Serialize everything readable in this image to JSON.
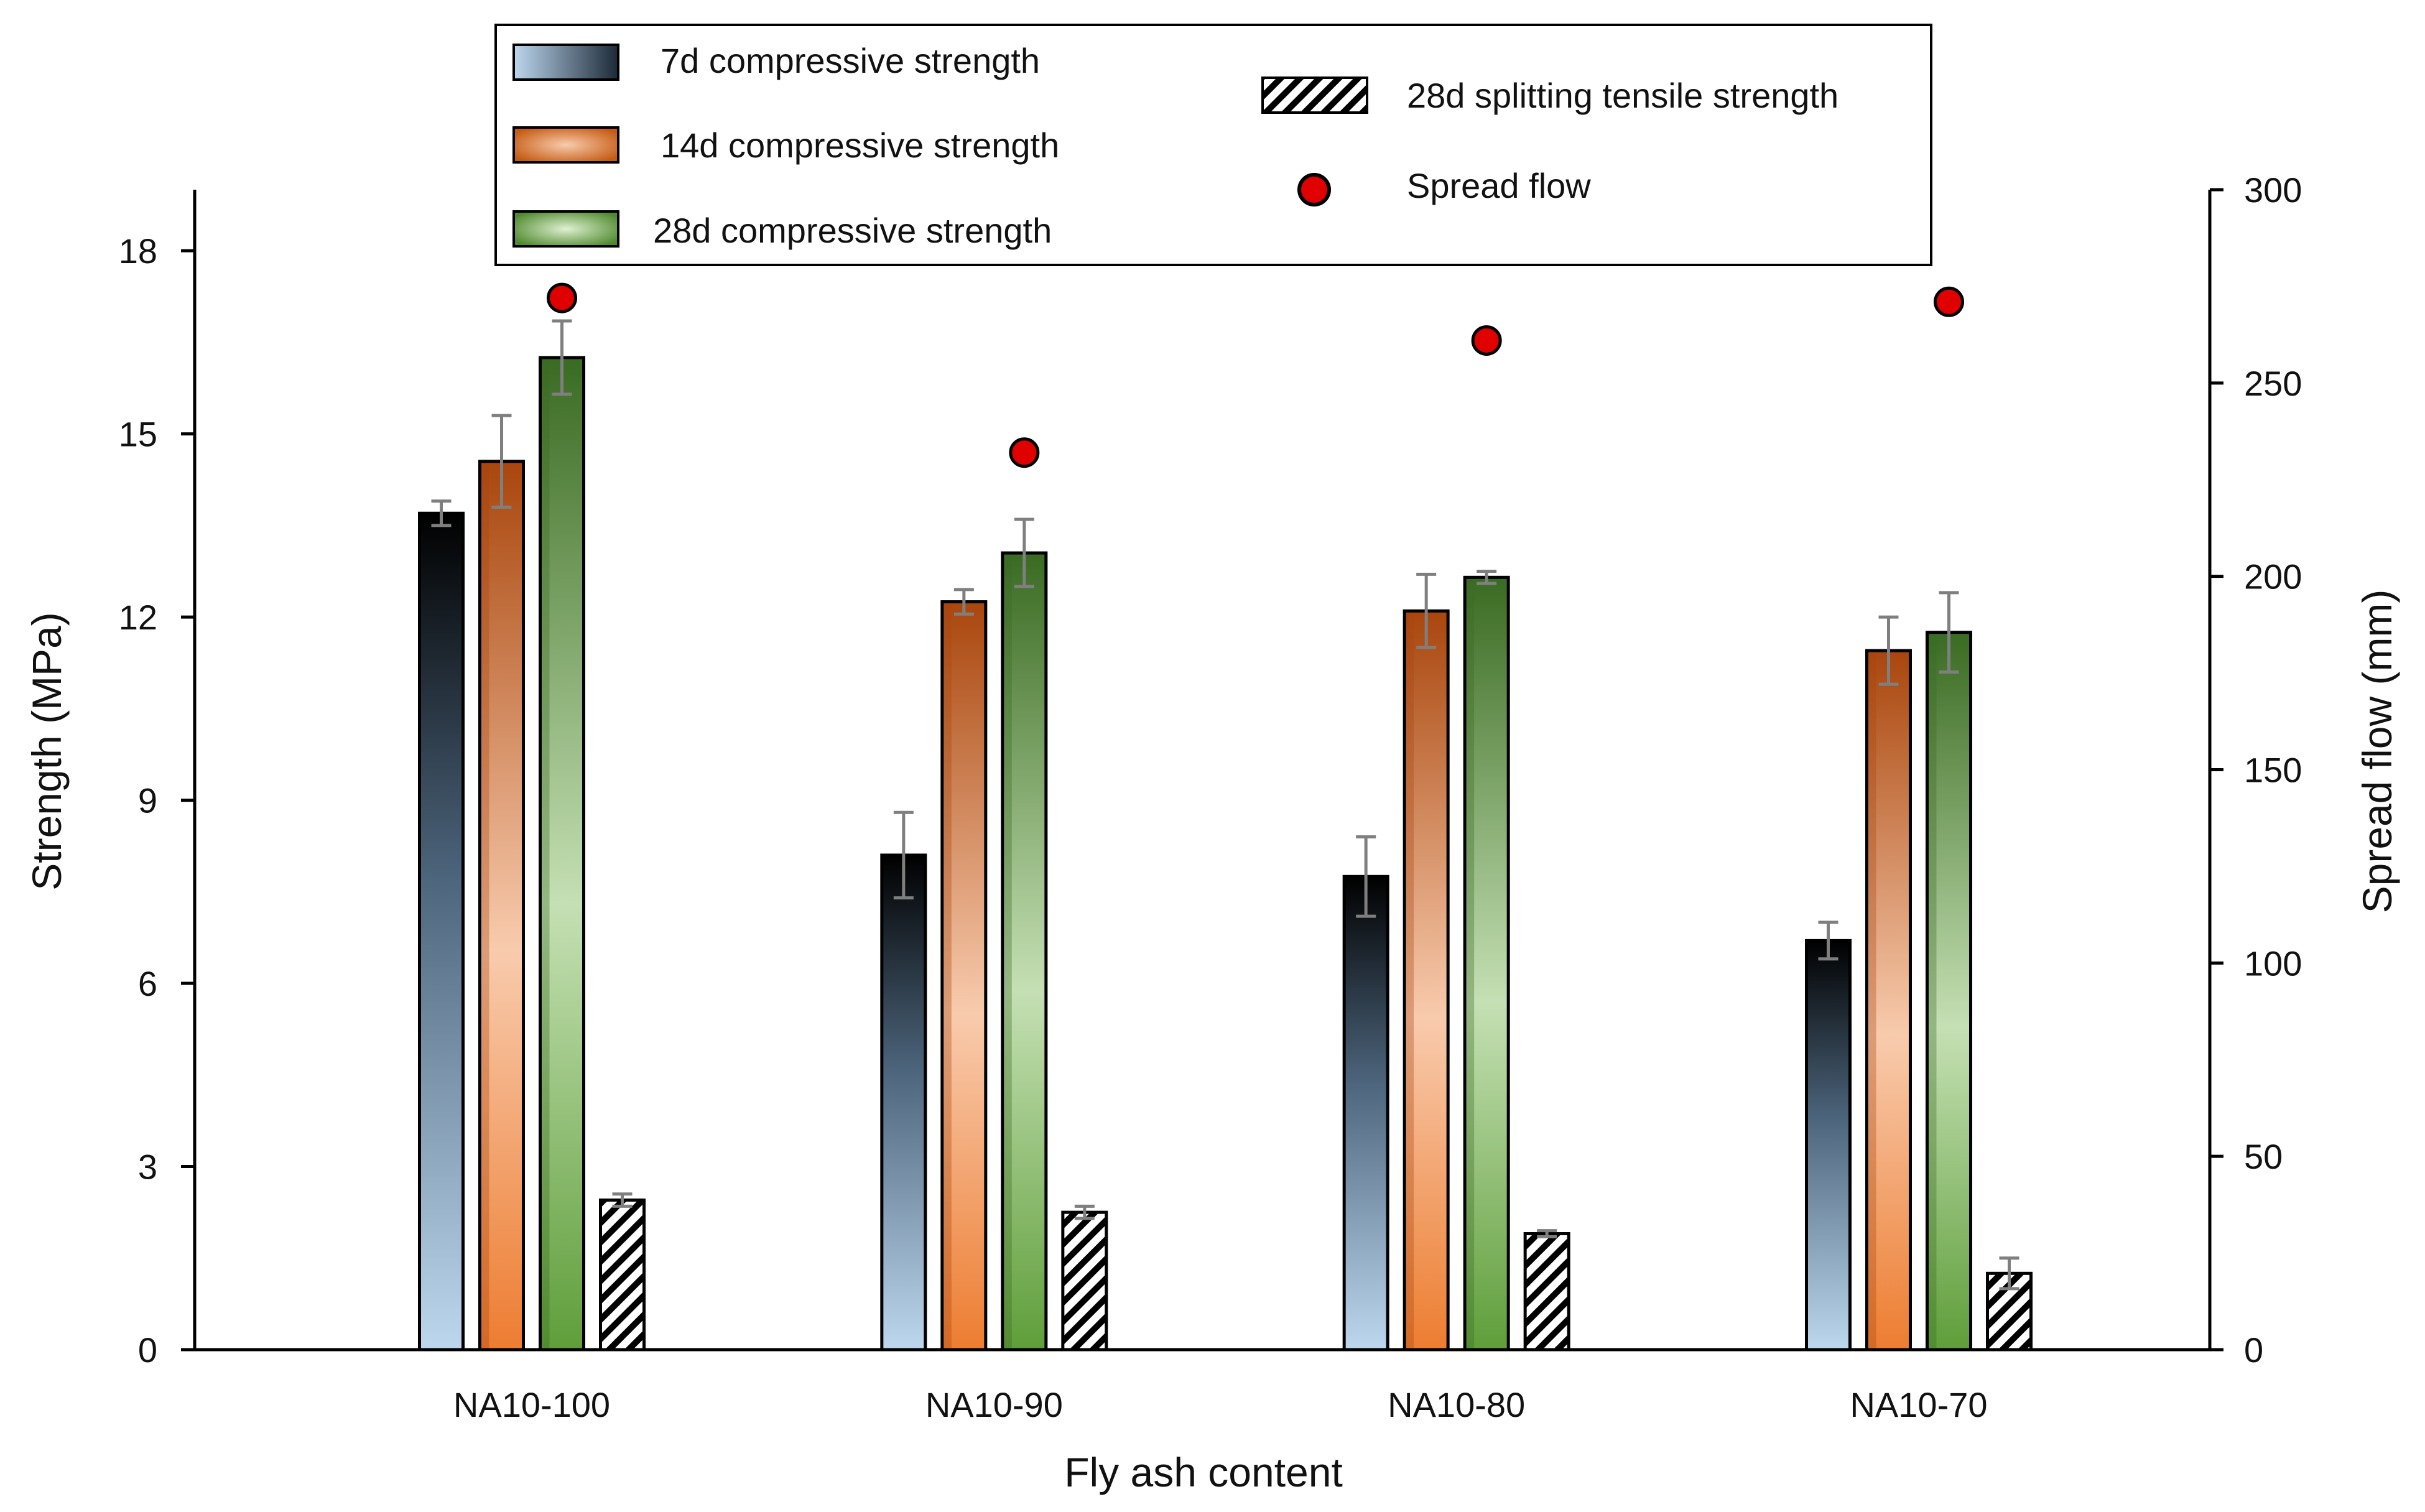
{
  "chart_data": {
    "type": "bar",
    "xlabel": "Fly ash content",
    "ylabel": "Strength (MPa)",
    "y2label": "Spread flow (mm)",
    "ylim": [
      0,
      19
    ],
    "y2lim": [
      0,
      300
    ],
    "yticks": [
      0,
      3,
      6,
      9,
      12,
      15,
      18
    ],
    "y2ticks": [
      0,
      50,
      100,
      150,
      200,
      250,
      300
    ],
    "categories": [
      "NA10-100",
      "NA10-90",
      "NA10-80",
      "NA10-70"
    ],
    "series": [
      {
        "key": "s7",
        "name": "7d compressive strength",
        "axis": "left",
        "values": [
          13.7,
          8.1,
          7.75,
          6.7
        ],
        "errors": [
          0.2,
          0.7,
          0.65,
          0.3
        ],
        "colors": {
          "top": "#000000",
          "bottom": "#bdd7ee"
        }
      },
      {
        "key": "s14",
        "name": "14d compressive strength",
        "axis": "left",
        "values": [
          14.55,
          12.25,
          12.1,
          11.45
        ],
        "errors": [
          0.75,
          0.2,
          0.6,
          0.55
        ],
        "colors": {
          "edge": "#a9460d",
          "mid": "#ed7d31",
          "light": "#f8cbad"
        }
      },
      {
        "key": "s28",
        "name": "28d compressive strength",
        "axis": "left",
        "values": [
          16.25,
          13.05,
          12.65,
          11.75
        ],
        "errors": [
          0.6,
          0.55,
          0.1,
          0.65
        ],
        "colors": {
          "edge": "#3a6b22",
          "mid": "#70ad47",
          "light": "#c5e0b4"
        }
      },
      {
        "key": "split",
        "name": "28d splitting tensile strength",
        "axis": "left",
        "values": [
          2.45,
          2.25,
          1.9,
          1.25
        ],
        "errors": [
          0.1,
          0.1,
          0.05,
          0.25
        ],
        "colors": {
          "stripe": "#000000",
          "fill": "#ffffff"
        }
      }
    ],
    "scatter": {
      "name": "Spread flow",
      "axis": "right",
      "values": [
        272,
        232,
        261,
        271
      ],
      "color": "#e00000"
    },
    "legend_position": "top-center"
  }
}
